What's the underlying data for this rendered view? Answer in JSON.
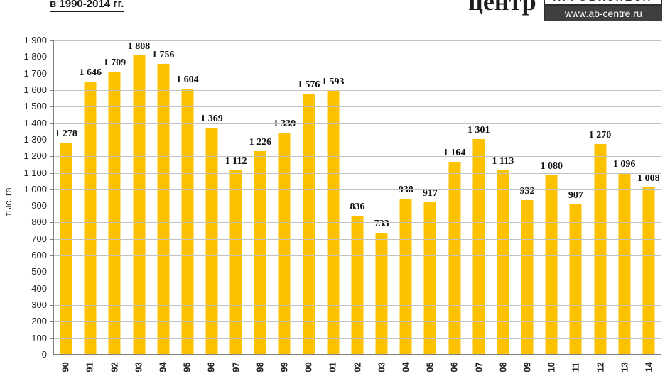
{
  "header": {
    "title_line": "в 1990-2014 гг.",
    "logo": {
      "brand": "центр",
      "division": "АГРОБИЗНЕСА",
      "website": "www.ab-centre.ru"
    }
  },
  "chart_data": {
    "type": "bar",
    "title": "в 1990-2014 гг.",
    "xlabel": "",
    "ylabel": "тыс. га",
    "ylim": [
      0,
      1900
    ],
    "ytick_step": 100,
    "grid": true,
    "legend": false,
    "bar_color": "#FCC200",
    "categories": [
      "90",
      "91",
      "92",
      "93",
      "94",
      "95",
      "96",
      "97",
      "98",
      "99",
      "00",
      "01",
      "02",
      "03",
      "04",
      "05",
      "06",
      "07",
      "08",
      "09",
      "10",
      "11",
      "12",
      "13",
      "14"
    ],
    "values": [
      1278,
      1646,
      1709,
      1808,
      1756,
      1604,
      1369,
      1112,
      1226,
      1339,
      1576,
      1593,
      836,
      733,
      938,
      917,
      1164,
      1301,
      1113,
      932,
      1080,
      907,
      1270,
      1096,
      1008
    ]
  }
}
